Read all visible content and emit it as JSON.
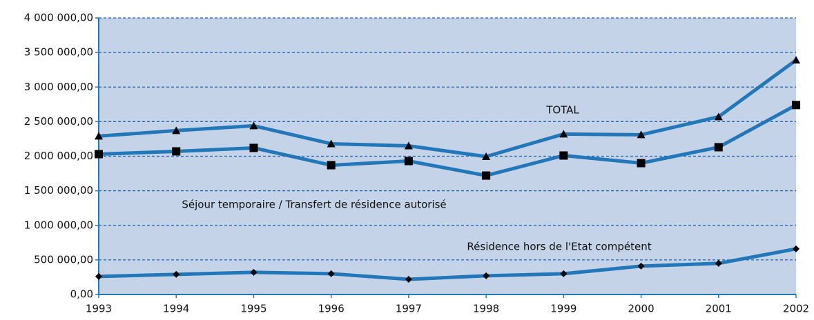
{
  "chart_data": {
    "type": "line",
    "categories": [
      "1993",
      "1994",
      "1995",
      "1996",
      "1997",
      "1998",
      "1999",
      "2000",
      "2001",
      "2002"
    ],
    "series": [
      {
        "name": "TOTAL",
        "color": "#2277b8",
        "marker": "triangle",
        "values": [
          2290000,
          2370000,
          2440000,
          2180000,
          2150000,
          1995000,
          2320000,
          2310000,
          2570000,
          3390000
        ]
      },
      {
        "name": "Séjour temporaire / Transfert de résidence autorisé",
        "color": "#2277b8",
        "marker": "square",
        "values": [
          2030000,
          2070000,
          2120000,
          1870000,
          1930000,
          1720000,
          2010000,
          1900000,
          2130000,
          2740000
        ]
      },
      {
        "name": "Résidence hors de l'Etat compétent",
        "color": "#2277b8",
        "marker": "diamond",
        "values": [
          260000,
          290000,
          320000,
          300000,
          220000,
          270000,
          300000,
          410000,
          450000,
          660000
        ]
      }
    ],
    "ylim": [
      0,
      4000000
    ],
    "yticks": [
      {
        "value": 0,
        "label": "0,00"
      },
      {
        "value": 500000,
        "label": "500 000,00"
      },
      {
        "value": 1000000,
        "label": "1 000 000,00"
      },
      {
        "value": 1500000,
        "label": "1 500 000,00"
      },
      {
        "value": 2000000,
        "label": "2 000 000,00"
      },
      {
        "value": 2500000,
        "label": "2 500 000,00"
      },
      {
        "value": 3000000,
        "label": "3 000 000,00"
      },
      {
        "value": 3500000,
        "label": "3 500 000,00"
      },
      {
        "value": 4000000,
        "label": "4 000 000,00"
      }
    ],
    "grid": true,
    "plot_background": "#c5d3e8"
  }
}
